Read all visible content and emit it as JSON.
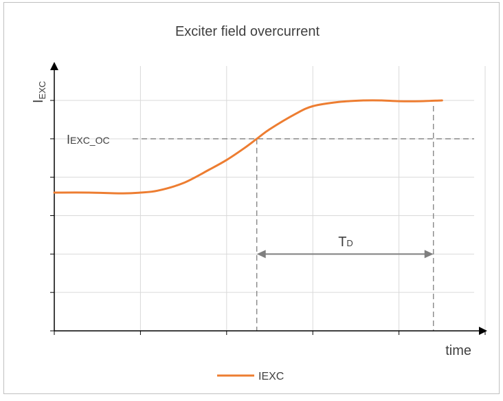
{
  "chart_data": {
    "type": "line",
    "title": "Exciter field overcurrent",
    "xlabel": "time",
    "ylabel": "I",
    "ylabel_sub": "EXC",
    "xlim": [
      0,
      5
    ],
    "ylim": [
      0,
      6
    ],
    "x_ticks": [
      0,
      1,
      2,
      3,
      4,
      5
    ],
    "y_ticks": [
      0,
      1,
      2,
      3,
      4,
      5,
      6
    ],
    "grid": true,
    "legend_position": "bottom-center",
    "series": [
      {
        "name": "IEXC",
        "color": "#ED7D31",
        "points": [
          [
            0,
            3.6
          ],
          [
            0.4,
            3.6
          ],
          [
            0.8,
            3.58
          ],
          [
            1.0,
            3.6
          ],
          [
            1.2,
            3.65
          ],
          [
            1.5,
            3.85
          ],
          [
            1.8,
            4.2
          ],
          [
            2.0,
            4.45
          ],
          [
            2.2,
            4.75
          ],
          [
            2.35,
            5.0
          ],
          [
            2.5,
            5.25
          ],
          [
            2.8,
            5.65
          ],
          [
            3.0,
            5.85
          ],
          [
            3.3,
            5.96
          ],
          [
            3.6,
            6.0
          ],
          [
            3.8,
            6.0
          ],
          [
            4.0,
            5.98
          ],
          [
            4.25,
            5.98
          ],
          [
            4.5,
            6.0
          ]
        ]
      }
    ],
    "threshold": {
      "label": "I",
      "label_sub": "EXC_OC",
      "y": 5.0,
      "x_cross": 2.35
    },
    "delay": {
      "label": "T",
      "label_sub": "D",
      "x_start": 2.35,
      "x_end": 4.4,
      "y": 2.0
    },
    "colors": {
      "series": "#ED7D31",
      "grid": "#D9D9D9",
      "axis": "#000000",
      "annotation": "#7F7F7F",
      "frame": "#BFBFBF"
    }
  }
}
